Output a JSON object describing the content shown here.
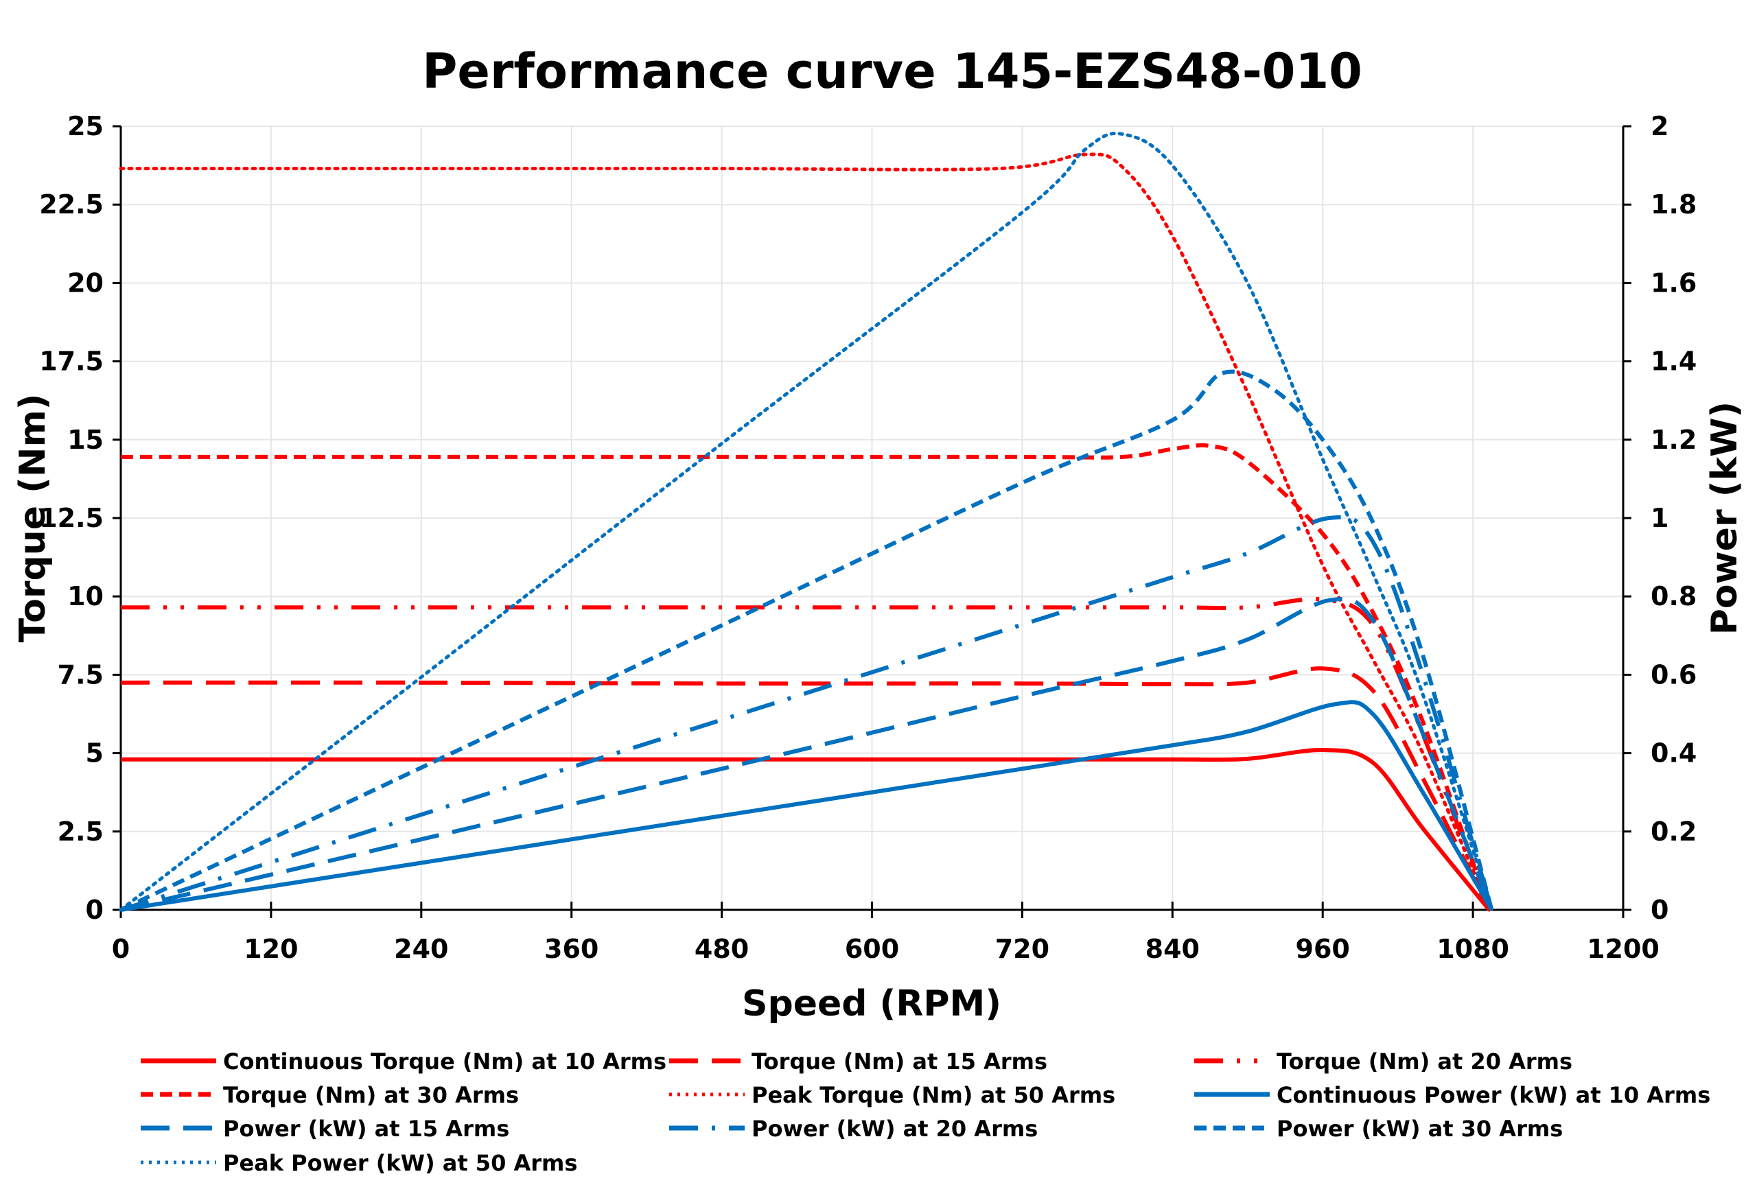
{
  "chart_data": {
    "type": "line",
    "title": "Performance curve 145-EZS48-010",
    "xlabel": "Speed (RPM)",
    "ylabel": "Torque (Nm)",
    "y2label": "Power (kW)",
    "xlim": [
      0,
      1200
    ],
    "ylim": [
      0,
      25
    ],
    "y2lim": [
      0,
      2
    ],
    "xticks": [
      "0",
      "120",
      "240",
      "360",
      "480",
      "600",
      "720",
      "840",
      "960",
      "1080",
      "1200"
    ],
    "yticks": [
      "0",
      "2.5",
      "5",
      "7.5",
      "10",
      "12.5",
      "15",
      "17.5",
      "20",
      "22.5",
      "25"
    ],
    "y2ticks": [
      "0",
      "0.2",
      "0.4",
      "0.6",
      "0.8",
      "1",
      "1.2",
      "1.4",
      "1.6",
      "1.8",
      "2"
    ],
    "grid": true,
    "legend_position": "bottom",
    "colors": {
      "torque": "#ff0000",
      "power": "#0070c0"
    },
    "series": [
      {
        "name": "Continuous Torque (Nm) at 10 Arms",
        "axis": "left",
        "color": "#ff0000",
        "style": "solid",
        "x": [
          0,
          240,
          480,
          720,
          840,
          900,
          960,
          1000,
          1040,
          1093
        ],
        "y": [
          4.8,
          4.8,
          4.8,
          4.8,
          4.8,
          4.82,
          5.1,
          4.7,
          2.6,
          0
        ]
      },
      {
        "name": "Torque (Nm) at 15 Arms",
        "axis": "left",
        "color": "#ff0000",
        "style": "long-dash",
        "x": [
          0,
          240,
          480,
          720,
          840,
          900,
          960,
          1000,
          1040,
          1093
        ],
        "y": [
          7.25,
          7.25,
          7.22,
          7.22,
          7.2,
          7.25,
          7.7,
          7.0,
          4.2,
          0
        ]
      },
      {
        "name": "Torque (Nm) at 20 Arms",
        "axis": "left",
        "color": "#ff0000",
        "style": "long-dash-dot-dot",
        "x": [
          0,
          240,
          480,
          720,
          840,
          900,
          960,
          1000,
          1040,
          1093
        ],
        "y": [
          9.65,
          9.65,
          9.65,
          9.65,
          9.65,
          9.65,
          9.9,
          9.1,
          5.6,
          0
        ]
      },
      {
        "name": "Torque (Nm) at 30 Arms",
        "axis": "left",
        "color": "#ff0000",
        "style": "short-dash",
        "x": [
          0,
          240,
          480,
          720,
          800,
          840,
          870,
          900,
          960,
          1000,
          1040,
          1093
        ],
        "y": [
          14.45,
          14.45,
          14.45,
          14.45,
          14.45,
          14.7,
          14.8,
          14.3,
          12.0,
          9.5,
          6.0,
          0
        ]
      },
      {
        "name": "Peak Torque (Nm) at 50 Arms",
        "axis": "left",
        "color": "#ff0000",
        "style": "dotted",
        "x": [
          0,
          240,
          480,
          700,
          770,
          800,
          840,
          900,
          960,
          1000,
          1040,
          1093
        ],
        "y": [
          23.65,
          23.65,
          23.65,
          23.65,
          24.1,
          23.7,
          21.5,
          16.5,
          11.0,
          8.0,
          5.0,
          0
        ]
      },
      {
        "name": "Continuous Power (kW) at 10 Arms",
        "axis": "right",
        "color": "#0070c0",
        "style": "solid",
        "x": [
          0,
          240,
          480,
          720,
          840,
          900,
          970,
          1000,
          1040,
          1095
        ],
        "y": [
          0,
          0.12,
          0.24,
          0.36,
          0.42,
          0.455,
          0.525,
          0.5,
          0.3,
          0
        ]
      },
      {
        "name": "Power (kW) at 15 Arms",
        "axis": "right",
        "color": "#0070c0",
        "style": "long-dash",
        "x": [
          0,
          240,
          480,
          720,
          840,
          900,
          965,
          1000,
          1040,
          1095
        ],
        "y": [
          0,
          0.18,
          0.36,
          0.545,
          0.635,
          0.69,
          0.79,
          0.74,
          0.45,
          0
        ]
      },
      {
        "name": "Power (kW) at 20 Arms",
        "axis": "right",
        "color": "#0070c0",
        "style": "long-dash-dot",
        "x": [
          0,
          240,
          480,
          720,
          840,
          900,
          965,
          1000,
          1040,
          1095
        ],
        "y": [
          0,
          0.243,
          0.485,
          0.728,
          0.849,
          0.91,
          1.0,
          0.94,
          0.6,
          0
        ]
      },
      {
        "name": "Power (kW) at 30 Arms",
        "axis": "right",
        "color": "#0070c0",
        "style": "short-dash",
        "x": [
          0,
          240,
          480,
          720,
          840,
          880,
          920,
          960,
          1000,
          1040,
          1095
        ],
        "y": [
          0,
          0.363,
          0.726,
          1.09,
          1.25,
          1.37,
          1.33,
          1.2,
          0.99,
          0.65,
          0
        ]
      },
      {
        "name": "Peak Power (kW) at 50 Arms",
        "axis": "right",
        "color": "#0070c0",
        "style": "dotted",
        "x": [
          0,
          240,
          480,
          720,
          770,
          800,
          840,
          900,
          960,
          1000,
          1040,
          1095
        ],
        "y": [
          0,
          0.594,
          1.19,
          1.78,
          1.94,
          1.98,
          1.9,
          1.6,
          1.15,
          0.86,
          0.55,
          0
        ]
      }
    ]
  }
}
